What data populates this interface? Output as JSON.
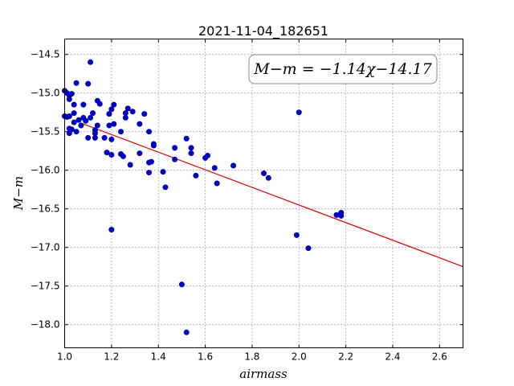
{
  "chart_data": {
    "type": "scatter",
    "title": "2021-11-04_182651",
    "xlabel": "airmass",
    "ylabel": "M−m",
    "xlim": [
      1.0,
      2.7
    ],
    "ylim": [
      -18.3,
      -14.3
    ],
    "y_inverted": true,
    "grid": true,
    "x_ticks": [
      "1.0",
      "1.2",
      "1.4",
      "1.6",
      "1.8",
      "2.0",
      "2.2",
      "2.4",
      "2.6"
    ],
    "y_ticks": [
      "−14.5",
      "−15.0",
      "−15.5",
      "−16.0",
      "−16.5",
      "−17.0",
      "−17.5",
      "−18.0"
    ],
    "annotation": "M−m = −1.14χ−14.17",
    "fit": {
      "slope": -1.14,
      "intercept": -14.17,
      "color": "#dd0000"
    },
    "point_color": "#0000cc",
    "points": [
      [
        1.0,
        -14.97
      ],
      [
        1.01,
        -15.0
      ],
      [
        1.02,
        -15.03
      ],
      [
        1.02,
        -15.08
      ],
      [
        1.03,
        -15.01
      ],
      [
        1.0,
        -15.3
      ],
      [
        1.01,
        -15.31
      ],
      [
        1.02,
        -15.3
      ],
      [
        1.02,
        -15.46
      ],
      [
        1.02,
        -15.52
      ],
      [
        1.03,
        -15.47
      ],
      [
        1.04,
        -15.38
      ],
      [
        1.05,
        -15.5
      ],
      [
        1.04,
        -15.15
      ],
      [
        1.05,
        -14.87
      ],
      [
        1.04,
        -15.26
      ],
      [
        1.06,
        -15.35
      ],
      [
        1.07,
        -15.42
      ],
      [
        1.08,
        -15.15
      ],
      [
        1.08,
        -15.32
      ],
      [
        1.09,
        -15.36
      ],
      [
        1.1,
        -14.88
      ],
      [
        1.1,
        -15.58
      ],
      [
        1.11,
        -14.6
      ],
      [
        1.11,
        -15.32
      ],
      [
        1.12,
        -15.26
      ],
      [
        1.13,
        -15.48
      ],
      [
        1.13,
        -15.52
      ],
      [
        1.13,
        -15.58
      ],
      [
        1.14,
        -15.42
      ],
      [
        1.14,
        -15.1
      ],
      [
        1.15,
        -15.14
      ],
      [
        1.17,
        -15.58
      ],
      [
        1.18,
        -15.77
      ],
      [
        1.19,
        -15.27
      ],
      [
        1.19,
        -15.42
      ],
      [
        1.2,
        -15.6
      ],
      [
        1.2,
        -15.8
      ],
      [
        1.2,
        -15.21
      ],
      [
        1.21,
        -15.15
      ],
      [
        1.21,
        -15.4
      ],
      [
        1.2,
        -16.77
      ],
      [
        1.24,
        -15.5
      ],
      [
        1.24,
        -15.79
      ],
      [
        1.25,
        -15.82
      ],
      [
        1.26,
        -15.26
      ],
      [
        1.26,
        -15.32
      ],
      [
        1.27,
        -15.2
      ],
      [
        1.28,
        -15.93
      ],
      [
        1.29,
        -15.24
      ],
      [
        1.32,
        -15.4
      ],
      [
        1.32,
        -15.78
      ],
      [
        1.34,
        -15.27
      ],
      [
        1.36,
        -15.9
      ],
      [
        1.36,
        -16.03
      ],
      [
        1.36,
        -15.5
      ],
      [
        1.37,
        -15.89
      ],
      [
        1.38,
        -15.68
      ],
      [
        1.38,
        -15.66
      ],
      [
        1.42,
        -16.02
      ],
      [
        1.43,
        -16.22
      ],
      [
        1.47,
        -15.86
      ],
      [
        1.47,
        -15.71
      ],
      [
        1.5,
        -17.48
      ],
      [
        1.52,
        -15.59
      ],
      [
        1.52,
        -18.1
      ],
      [
        1.54,
        -15.71
      ],
      [
        1.54,
        -15.78
      ],
      [
        1.56,
        -16.07
      ],
      [
        1.6,
        -15.84
      ],
      [
        1.61,
        -15.81
      ],
      [
        1.64,
        -15.97
      ],
      [
        1.65,
        -16.17
      ],
      [
        1.72,
        -15.94
      ],
      [
        1.85,
        -16.04
      ],
      [
        1.87,
        -16.1
      ],
      [
        1.99,
        -16.84
      ],
      [
        2.0,
        -15.25
      ],
      [
        2.04,
        -17.01
      ],
      [
        2.16,
        -16.58
      ],
      [
        2.18,
        -16.59
      ],
      [
        2.18,
        -16.55
      ]
    ]
  }
}
